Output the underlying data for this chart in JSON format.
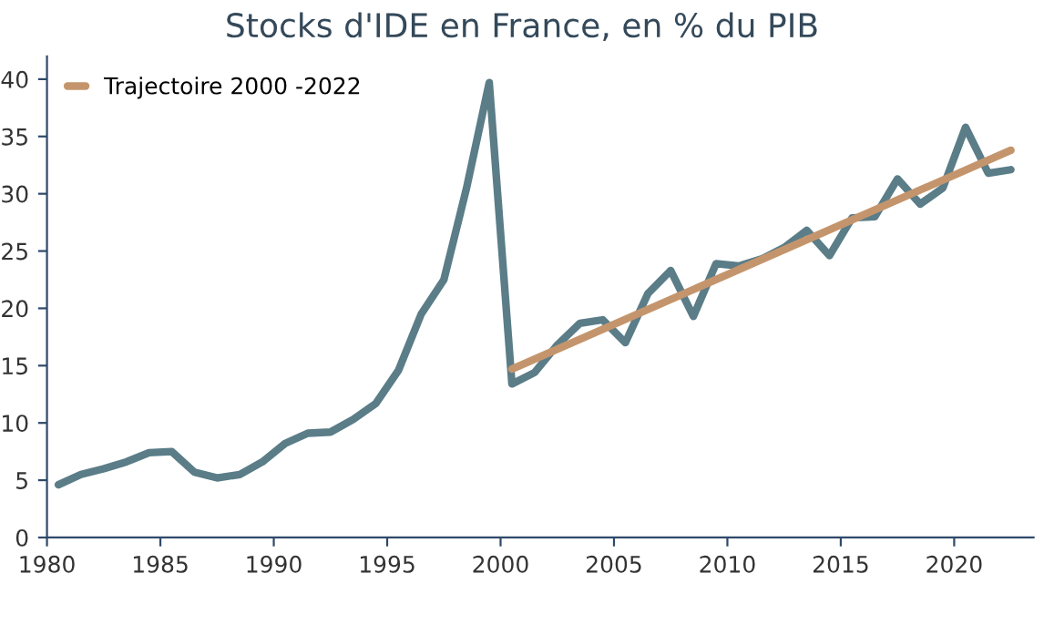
{
  "chart_data": {
    "type": "line",
    "title": "Stocks d'IDE en France, en % du PIB",
    "series": [
      {
        "color": "#5a7d88",
        "x": [
          1980.5,
          1981.5,
          1982.5,
          1983.5,
          1984.5,
          1985.5,
          1986.5,
          1987.5,
          1988.5,
          1989.5,
          1990.5,
          1991.5,
          1992.5,
          1993.5,
          1994.5,
          1995.5,
          1996.5,
          1997.5,
          1998.5,
          1999.5,
          2000.5,
          2001.5,
          2002.5,
          2003.5,
          2004.5,
          2005.5,
          2006.5,
          2007.5,
          2008.5,
          2009.5,
          2010.5,
          2011.5,
          2012.5,
          2013.5,
          2014.5,
          2015.5,
          2016.5,
          2017.5,
          2018.5,
          2019.5,
          2020.5,
          2021.5,
          2022.5
        ],
        "values": [
          4.6,
          5.5,
          6.0,
          6.6,
          7.4,
          7.5,
          5.7,
          5.2,
          5.5,
          6.6,
          8.2,
          9.1,
          9.2,
          10.3,
          11.7,
          14.6,
          19.5,
          22.5,
          30.5,
          39.7,
          13.4,
          14.4,
          16.8,
          18.7,
          19.0,
          17.0,
          21.3,
          23.3,
          19.3,
          23.9,
          23.7,
          24.3,
          25.3,
          26.8,
          24.6,
          27.9,
          28.0,
          31.3,
          29.1,
          30.5,
          35.8,
          31.8,
          32.1
        ]
      },
      {
        "name": "Trajectoire 2000 -2022",
        "color": "#c4956c",
        "x": [
          2000.5,
          2022.5
        ],
        "values": [
          14.7,
          33.8
        ]
      }
    ],
    "xlim": [
      1980,
      2023.5
    ],
    "xticks": [
      1980,
      1985,
      1990,
      1995,
      2000,
      2005,
      2010,
      2015,
      2020
    ],
    "ylim": [
      0,
      42
    ],
    "yticks": [
      0,
      5,
      10,
      15,
      20,
      25,
      30,
      35,
      40
    ],
    "legend": "top left",
    "grid": false,
    "marker": "none",
    "line_style": "solid"
  }
}
